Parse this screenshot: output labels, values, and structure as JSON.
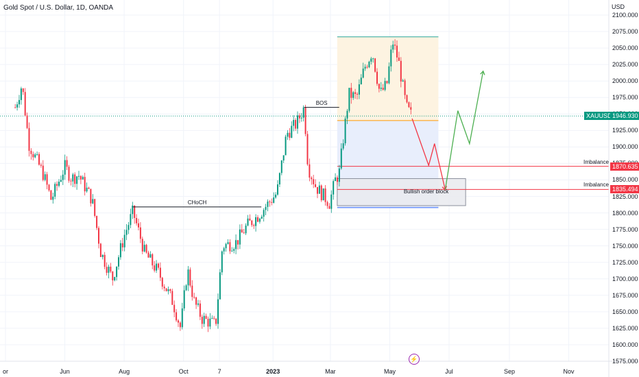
{
  "header": {
    "title": "Gold Spot / U.S. Dollar, 1D, OANDA"
  },
  "axis": {
    "currency": "USD"
  },
  "chart_data": {
    "type": "candlestick",
    "symbol": "XAUUSD",
    "current_price": "1946.930",
    "ylim": [
      1575,
      2100
    ],
    "y_ticks": [
      "2100.000",
      "2075.000",
      "2050.000",
      "2025.000",
      "2000.000",
      "1975.000",
      "1950.000",
      "1925.000",
      "1900.000",
      "1875.000",
      "1850.000",
      "1825.000",
      "1800.000",
      "1775.000",
      "1750.000",
      "1725.000",
      "1700.000",
      "1675.000",
      "1650.000",
      "1625.000",
      "1600.000",
      "1575.000"
    ],
    "x_ticks": [
      {
        "label": "or",
        "bold": false
      },
      {
        "label": "Jun",
        "bold": false
      },
      {
        "label": "Aug",
        "bold": false
      },
      {
        "label": "Oct",
        "bold": false
      },
      {
        "label": "7",
        "bold": false
      },
      {
        "label": "2023",
        "bold": true
      },
      {
        "label": "Mar",
        "bold": false
      },
      {
        "label": "May",
        "bold": false
      },
      {
        "label": "Jul",
        "bold": false
      },
      {
        "label": "Sep",
        "bold": false
      },
      {
        "label": "Nov",
        "bold": false
      }
    ],
    "price_path": [
      {
        "date": "2022-04-11",
        "close": 1960
      },
      {
        "date": "2022-04-18",
        "close": 1995
      },
      {
        "date": "2022-04-25",
        "close": 1905
      },
      {
        "date": "2022-05-10",
        "close": 1858
      },
      {
        "date": "2022-05-18",
        "close": 1820
      },
      {
        "date": "2022-06-01",
        "close": 1870
      },
      {
        "date": "2022-06-08",
        "close": 1852
      },
      {
        "date": "2022-06-15",
        "close": 1858
      },
      {
        "date": "2022-06-29",
        "close": 1820
      },
      {
        "date": "2022-07-08",
        "close": 1740
      },
      {
        "date": "2022-07-20",
        "close": 1700
      },
      {
        "date": "2022-08-01",
        "close": 1765
      },
      {
        "date": "2022-08-10",
        "close": 1802
      },
      {
        "date": "2022-08-22",
        "close": 1740
      },
      {
        "date": "2022-09-05",
        "close": 1710
      },
      {
        "date": "2022-09-20",
        "close": 1665
      },
      {
        "date": "2022-09-28",
        "close": 1625
      },
      {
        "date": "2022-10-05",
        "close": 1715
      },
      {
        "date": "2022-10-12",
        "close": 1665
      },
      {
        "date": "2022-10-20",
        "close": 1640
      },
      {
        "date": "2022-11-03",
        "close": 1630
      },
      {
        "date": "2022-11-10",
        "close": 1750
      },
      {
        "date": "2022-11-24",
        "close": 1755
      },
      {
        "date": "2022-12-05",
        "close": 1780
      },
      {
        "date": "2022-12-16",
        "close": 1795
      },
      {
        "date": "2023-01-05",
        "close": 1830
      },
      {
        "date": "2023-01-15",
        "close": 1920
      },
      {
        "date": "2023-01-25",
        "close": 1935
      },
      {
        "date": "2023-02-02",
        "close": 1960
      },
      {
        "date": "2023-02-06",
        "close": 1870
      },
      {
        "date": "2023-02-14",
        "close": 1840
      },
      {
        "date": "2023-02-28",
        "close": 1815
      },
      {
        "date": "2023-03-06",
        "close": 1850
      },
      {
        "date": "2023-03-10",
        "close": 1860
      },
      {
        "date": "2023-03-14",
        "close": 1910
      },
      {
        "date": "2023-03-20",
        "close": 1980
      },
      {
        "date": "2023-03-28",
        "close": 1975
      },
      {
        "date": "2023-04-05",
        "close": 2020
      },
      {
        "date": "2023-04-13",
        "close": 2045
      },
      {
        "date": "2023-04-21",
        "close": 1980
      },
      {
        "date": "2023-04-28",
        "close": 1995
      },
      {
        "date": "2023-05-04",
        "close": 2060
      },
      {
        "date": "2023-05-10",
        "close": 2030
      },
      {
        "date": "2023-05-18",
        "close": 1960
      },
      {
        "date": "2023-05-24",
        "close": 1946
      }
    ],
    "zones": {
      "upper_zone": {
        "from": "2023-03-08",
        "to": "2023-06-20",
        "low": 1940,
        "high": 2067
      },
      "lower_zone": {
        "from": "2023-03-08",
        "to": "2023-06-20",
        "low": 1808,
        "high": 1940
      },
      "order_block": {
        "label": "Bullish order block",
        "from": "2023-03-08",
        "to": "2023-07-18",
        "low": 1811,
        "high": 1852
      }
    },
    "levels": [
      {
        "label": "Imbalance",
        "price": 1870.635,
        "price_label": "1870.635"
      },
      {
        "label": "Imbalance",
        "price": 1835.494,
        "price_label": "1835.494"
      }
    ],
    "annotations": [
      {
        "label": "CHoCH",
        "price": 1809,
        "from": "2022-08-10",
        "to": "2022-12-20"
      },
      {
        "label": "BOS",
        "price": 1960,
        "from": "2023-02-02",
        "to": "2023-03-10"
      }
    ],
    "projections": [
      {
        "color": "#f23645",
        "points": [
          {
            "date": "2023-05-24",
            "price": 1943
          },
          {
            "date": "2023-06-10",
            "price": 1872
          },
          {
            "date": "2023-06-16",
            "price": 1905
          },
          {
            "date": "2023-06-27",
            "price": 1835
          }
        ]
      },
      {
        "color": "#4caf50",
        "points": [
          {
            "date": "2023-06-27",
            "price": 1835
          },
          {
            "date": "2023-07-10",
            "price": 1955
          },
          {
            "date": "2023-07-22",
            "price": 1905
          },
          {
            "date": "2023-08-05",
            "price": 2015
          }
        ]
      }
    ]
  },
  "colors": {
    "up": "#089981",
    "down": "#f23645",
    "zone_upper": "#fdf3e1",
    "zone_lower": "#e8eefc",
    "order_block": "#e9eaee",
    "level": "#f23645",
    "current": "#089981"
  },
  "icons": {
    "flash": "flash-icon"
  }
}
